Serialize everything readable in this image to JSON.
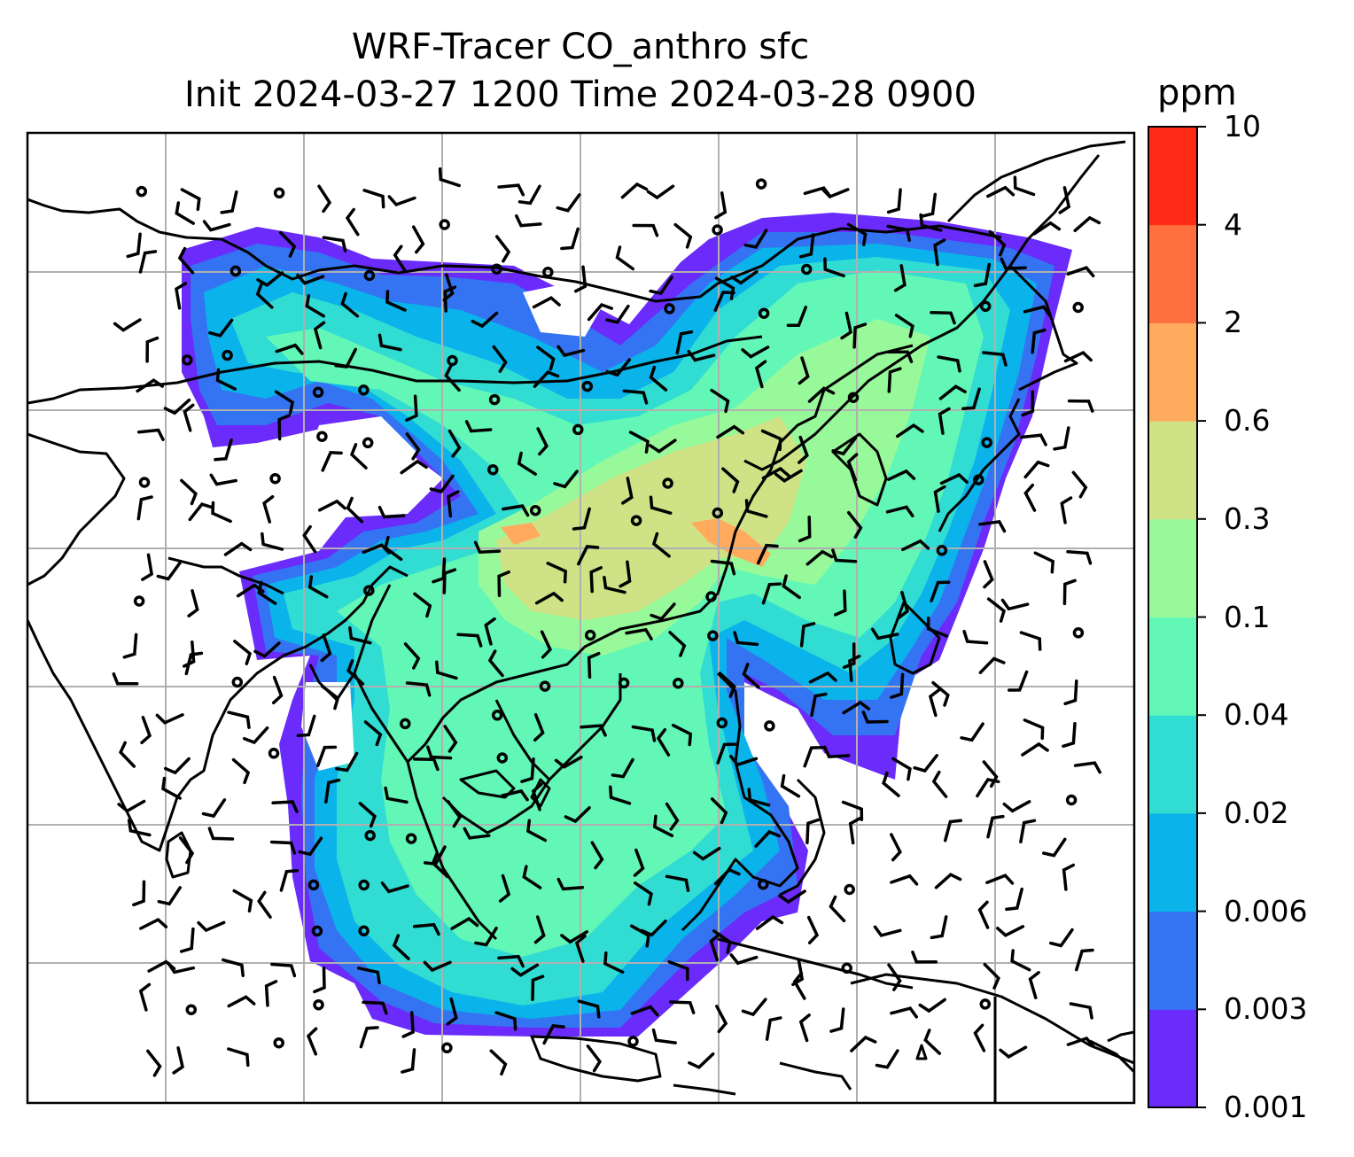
{
  "title": {
    "line1": "WRF-Tracer CO_anthro sfc",
    "line2": "Init 2024-03-27 1200 Time 2024-03-28 0900"
  },
  "colorbar": {
    "unit": "ppm",
    "levels": [
      "0.001",
      "0.003",
      "0.006",
      "0.02",
      "0.04",
      "0.1",
      "0.3",
      "0.6",
      "2",
      "4",
      "10"
    ],
    "colors": [
      "#6a2bfb",
      "#3474f3",
      "#0ab3ea",
      "#31dcd3",
      "#62f7b6",
      "#98f99a",
      "#cfe285",
      "#ffaa5d",
      "#ff703e",
      "#ff2b17"
    ]
  },
  "map": {
    "gridlines": true,
    "coastlines": true,
    "wind_barbs": true
  }
}
